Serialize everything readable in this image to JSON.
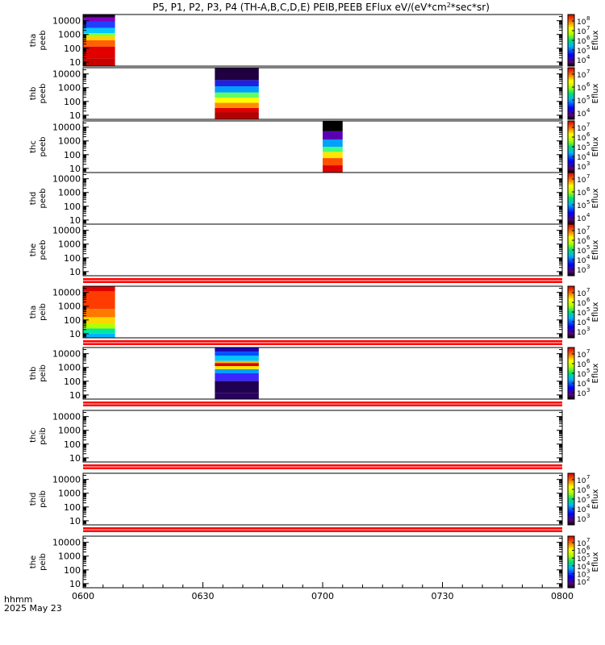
{
  "chart_data": {
    "type": "heatmap",
    "title": "P5, P1, P2, P3, P4 (TH-A,B,C,D,E) PEIB,PEEB EFlux eV/(eV*cm",
    "title_sup": "2",
    "title_end": "*sec*sr)",
    "x_ticks": [
      "0600",
      "0630",
      "0700",
      "0730",
      "0800"
    ],
    "x_range": [
      "0600",
      "0800"
    ],
    "x_label_line1": "hhmm",
    "x_label_line2": "2025 May 23",
    "y_ticks": [
      "10",
      "100",
      "1000",
      "10000"
    ],
    "y_scale": "log",
    "colorbar_label": "Eflux",
    "panels": [
      {
        "label_line1": "tha",
        "label_line2": "peeb",
        "colorbar_ticks": [
          "4",
          "5",
          "6",
          "7",
          "8"
        ],
        "colorbar_top": "8",
        "blocks": [
          {
            "start": "0600",
            "end": "0608",
            "profile": "tha_peeb"
          }
        ]
      },
      {
        "label_line1": "thb",
        "label_line2": "peeb",
        "colorbar_ticks": [
          "4",
          "5",
          "6",
          "7"
        ],
        "colorbar_top": "8",
        "blocks": [
          {
            "start": "0633",
            "end": "0644",
            "profile": "thb_peeb"
          }
        ]
      },
      {
        "label_line1": "thc",
        "label_line2": "peeb",
        "colorbar_ticks": [
          "3",
          "4",
          "5",
          "6",
          "7"
        ],
        "colorbar_top": "8",
        "blocks": [
          {
            "start": "0700",
            "end": "0705",
            "profile": "thc_peeb"
          }
        ]
      },
      {
        "label_line1": "thd",
        "label_line2": "peeb",
        "colorbar_ticks": [
          "4",
          "5",
          "6",
          "7"
        ],
        "colorbar_top": "8",
        "blocks": []
      },
      {
        "label_line1": "the",
        "label_line2": "peeb",
        "colorbar_ticks": [
          "3",
          "4",
          "5",
          "6",
          "7"
        ],
        "colorbar_top": "8",
        "blocks": [],
        "red_band_after": true
      },
      {
        "label_line1": "tha",
        "label_line2": "peib",
        "colorbar_ticks": [
          "3",
          "4",
          "5",
          "6",
          "7"
        ],
        "blocks": [
          {
            "start": "0600",
            "end": "0608",
            "profile": "tha_peib"
          }
        ],
        "red_band_after": true
      },
      {
        "label_line1": "thb",
        "label_line2": "peib",
        "colorbar_ticks": [
          "3",
          "4",
          "5",
          "6",
          "7"
        ],
        "blocks": [
          {
            "start": "0633",
            "end": "0644",
            "profile": "thb_peib"
          }
        ],
        "red_band_after": true
      },
      {
        "label_line1": "thc",
        "label_line2": "peib",
        "colorbar_ticks": [],
        "blocks": [],
        "red_band_after": true
      },
      {
        "label_line1": "thd",
        "label_line2": "peib",
        "colorbar_ticks": [
          "3",
          "4",
          "5",
          "6",
          "7"
        ],
        "blocks": [],
        "red_band_after": true
      },
      {
        "label_line1": "the",
        "label_line2": "peib",
        "colorbar_ticks": [
          "2",
          "3",
          "4",
          "5",
          "6",
          "7"
        ],
        "blocks": []
      }
    ]
  }
}
